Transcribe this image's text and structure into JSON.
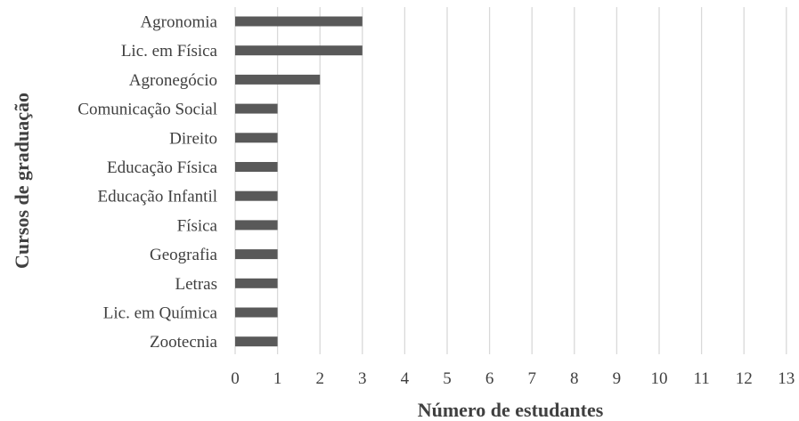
{
  "chart_data": {
    "type": "bar",
    "orientation": "horizontal",
    "categories": [
      "Agronomia",
      "Lic. em Física",
      "Agronegócio",
      "Comunicação Social",
      "Direito",
      "Educação Física",
      "Educação Infantil",
      "Física",
      "Geografia",
      "Letras",
      "Lic. em Química",
      "Zootecnia"
    ],
    "values": [
      3,
      3,
      2,
      1,
      1,
      1,
      1,
      1,
      1,
      1,
      1,
      1
    ],
    "xlabel": "Número de estudantes",
    "ylabel": "Cursos de graduação",
    "xlim": [
      0,
      13
    ],
    "xticks": [
      "0",
      "1",
      "2",
      "3",
      "4",
      "5",
      "6",
      "7",
      "8",
      "9",
      "10",
      "11",
      "12",
      "13"
    ],
    "grid": true,
    "bar_color": "#595959",
    "grid_color": "#d9d9d9",
    "text_color": "#404040"
  }
}
